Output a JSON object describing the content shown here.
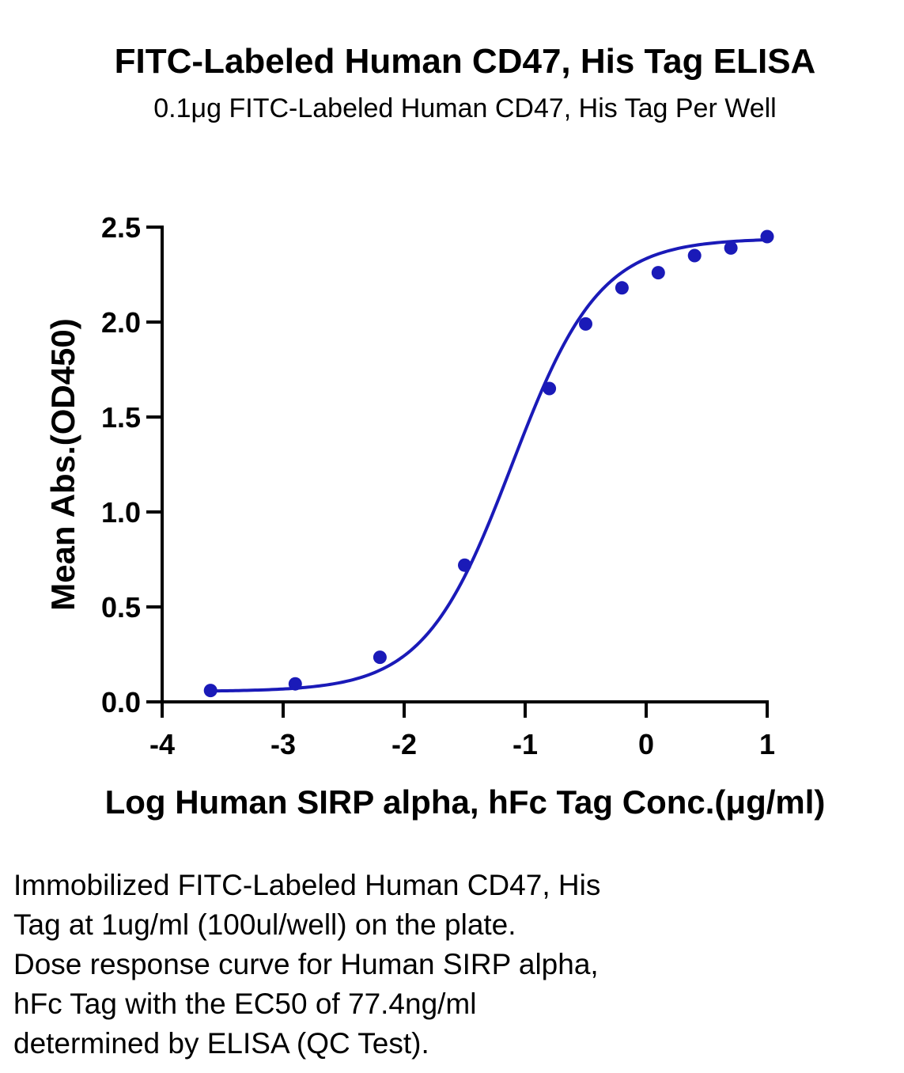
{
  "chart_data": {
    "type": "scatter",
    "title": "FITC-Labeled Human CD47, His Tag ELISA",
    "subtitle": "0.1μg FITC-Labeled Human CD47, His Tag Per Well",
    "xlabel": "Log Human SIRP alpha, hFc Tag Conc.(μg/ml)",
    "ylabel": "Mean Abs.(OD450)",
    "xlim": [
      -4,
      1
    ],
    "ylim": [
      0,
      2.5
    ],
    "xticks": [
      "-4",
      "-3",
      "-2",
      "-1",
      "0",
      "1"
    ],
    "yticks": [
      "0.0",
      "0.5",
      "1.0",
      "1.5",
      "2.0",
      "2.5"
    ],
    "grid": false,
    "series": [
      {
        "color": "#1a1ab8",
        "x": [
          -3.6,
          -2.9,
          -2.2,
          -1.5,
          -0.8,
          -0.5,
          -0.2,
          0.1,
          0.4,
          0.7,
          1.0
        ],
        "y": [
          0.06,
          0.095,
          0.235,
          0.72,
          1.65,
          1.99,
          2.18,
          2.26,
          2.35,
          2.39,
          2.45
        ]
      }
    ],
    "fit_curve": {
      "model": "4PL",
      "bottom": 0.055,
      "top": 2.44,
      "log_ec50": -1.11,
      "hill": 1.2,
      "color": "#1a1ab8"
    }
  },
  "caption": {
    "lines": [
      "Immobilized FITC-Labeled Human CD47, His",
      "Tag at 1ug/ml (100ul/well) on the plate.",
      "Dose response curve for Human SIRP alpha,",
      "hFc Tag with the EC50 of 77.4ng/ml",
      "determined by ELISA (QC Test)."
    ]
  }
}
